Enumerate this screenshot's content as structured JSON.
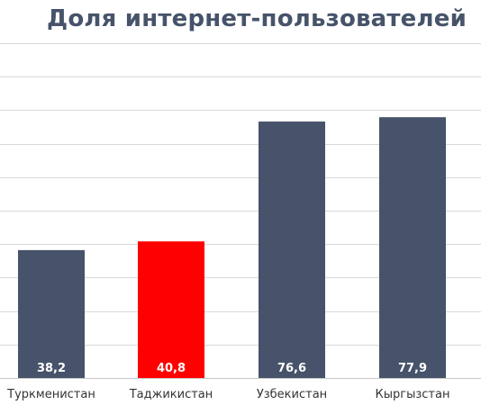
{
  "chart_data": {
    "type": "bar",
    "title": "Доля интернет-пользователей",
    "categories": [
      "Туркменистан",
      "Таджикистан",
      "Узбекистан",
      "Кыргызстан"
    ],
    "values": [
      38.2,
      40.8,
      76.6,
      77.9
    ],
    "value_labels": [
      "38,2",
      "40,8",
      "76,6",
      "77,9"
    ],
    "ylim": [
      0,
      100
    ],
    "grid": true,
    "bar_colors": [
      "#46536a",
      "#ff0000",
      "#46536a",
      "#46536a"
    ]
  }
}
